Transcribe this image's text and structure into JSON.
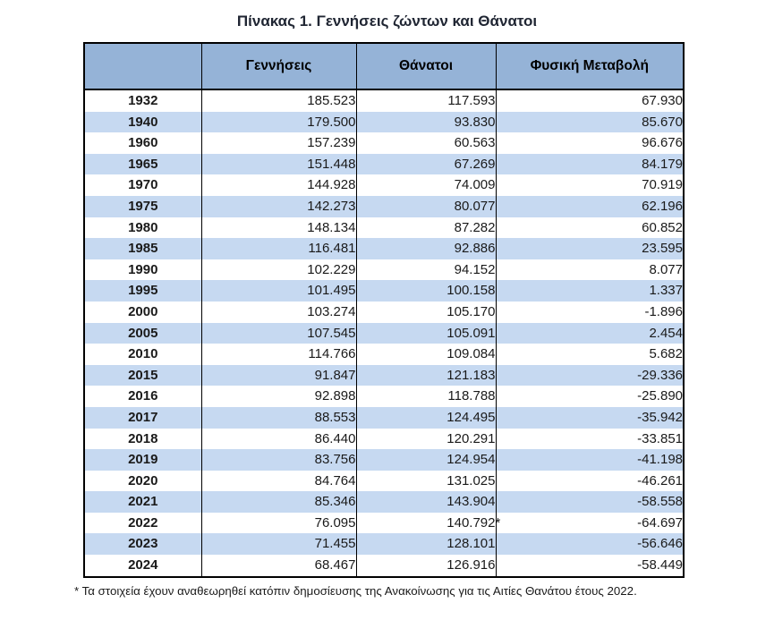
{
  "page": {
    "title": "Πίνακας 1. Γεννήσεις ζώντων και Θάνατοι",
    "footnote": "* Τα στοιχεία έχουν αναθεωρηθεί κατόπιν δημοσίευσης της Ανακοίνωσης για τις Αιτίες Θανάτου έτους 2022."
  },
  "colors": {
    "header_bg": "#95B3D7",
    "row_alt_bg": "#C6D9F1",
    "row_bg": "#FFFFFF",
    "border": "#000000",
    "title_text": "#202633",
    "body_text": "#1A1A1A"
  },
  "chart_data": {
    "type": "table",
    "title": "Πίνακας 1. Γεννήσεις ζώντων και Θάνατοι",
    "columns": [
      "",
      "Γεννήσεις",
      "Θάνατοι",
      "Φυσική Μεταβολή"
    ],
    "rows": [
      [
        "1932",
        "185.523",
        "117.593",
        "67.930"
      ],
      [
        "1940",
        "179.500",
        "93.830",
        "85.670"
      ],
      [
        "1960",
        "157.239",
        "60.563",
        "96.676"
      ],
      [
        "1965",
        "151.448",
        "67.269",
        "84.179"
      ],
      [
        "1970",
        "144.928",
        "74.009",
        "70.919"
      ],
      [
        "1975",
        "142.273",
        "80.077",
        "62.196"
      ],
      [
        "1980",
        "148.134",
        "87.282",
        "60.852"
      ],
      [
        "1985",
        "116.481",
        "92.886",
        "23.595"
      ],
      [
        "1990",
        "102.229",
        "94.152",
        "8.077"
      ],
      [
        "1995",
        "101.495",
        "100.158",
        "1.337"
      ],
      [
        "2000",
        "103.274",
        "105.170",
        "-1.896"
      ],
      [
        "2005",
        "107.545",
        "105.091",
        "2.454"
      ],
      [
        "2010",
        "114.766",
        "109.084",
        "5.682"
      ],
      [
        "2015",
        "91.847",
        "121.183",
        "-29.336"
      ],
      [
        "2016",
        "92.898",
        "118.788",
        "-25.890"
      ],
      [
        "2017",
        "88.553",
        "124.495",
        "-35.942"
      ],
      [
        "2018",
        "86.440",
        "120.291",
        "-33.851"
      ],
      [
        "2019",
        "83.756",
        "124.954",
        "-41.198"
      ],
      [
        "2020",
        "84.764",
        "131.025",
        "-46.261"
      ],
      [
        "2021",
        "85.346",
        "143.904",
        "-58.558"
      ],
      [
        "2022",
        "76.095",
        "140.792*",
        "-64.697"
      ],
      [
        "2023",
        "71.455",
        "128.101",
        "-56.646"
      ],
      [
        "2024",
        "68.467",
        "126.916",
        "-58.449"
      ]
    ]
  }
}
